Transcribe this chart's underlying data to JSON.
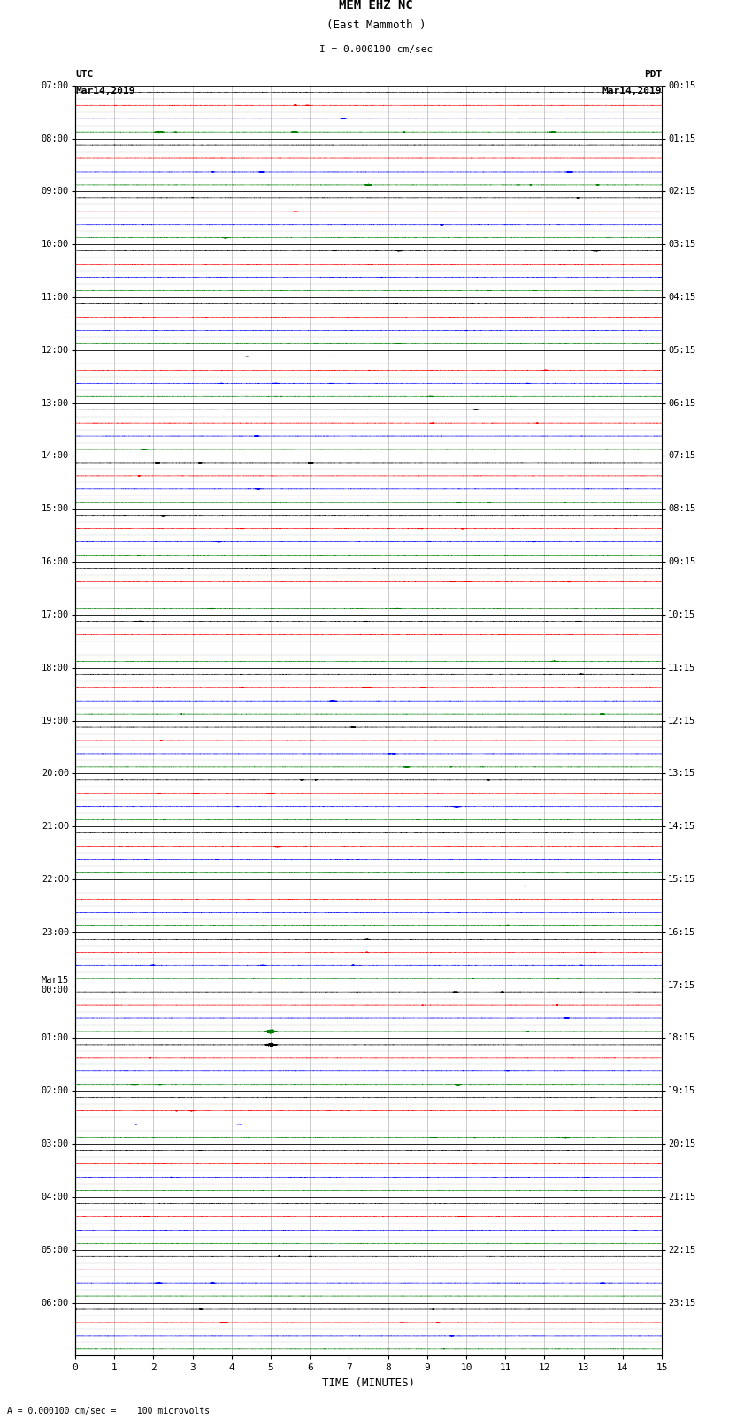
{
  "title_line1": "MEM EHZ NC",
  "title_line2": "(East Mammoth )",
  "title_scale": "I = 0.000100 cm/sec",
  "label_left_top1": "UTC",
  "label_left_top2": "Mar14,2019",
  "label_right_top1": "PDT",
  "label_right_top2": "Mar14,2019",
  "xlabel": "TIME (MINUTES)",
  "bottom_note": "= 0.000100 cm/sec =    100 microvolts",
  "utc_labels": [
    "07:00",
    "08:00",
    "09:00",
    "10:00",
    "11:00",
    "12:00",
    "13:00",
    "14:00",
    "15:00",
    "16:00",
    "17:00",
    "18:00",
    "19:00",
    "20:00",
    "21:00",
    "22:00",
    "23:00",
    "Mar15\n00:00",
    "01:00",
    "02:00",
    "03:00",
    "04:00",
    "05:00",
    "06:00"
  ],
  "pdt_labels": [
    "00:15",
    "01:15",
    "02:15",
    "03:15",
    "04:15",
    "05:15",
    "06:15",
    "07:15",
    "08:15",
    "09:15",
    "10:15",
    "11:15",
    "12:15",
    "13:15",
    "14:15",
    "15:15",
    "16:15",
    "17:15",
    "18:15",
    "19:15",
    "20:15",
    "21:15",
    "22:15",
    "23:15"
  ],
  "trace_colors": [
    "black",
    "red",
    "blue",
    "green"
  ],
  "n_rows": 96,
  "n_hour_groups": 24,
  "n_minutes": 15,
  "trace_amplitude": 0.012,
  "bg_color": "white",
  "grid_color": "#999999",
  "figsize": [
    8.5,
    16.13
  ],
  "dpi": 100
}
